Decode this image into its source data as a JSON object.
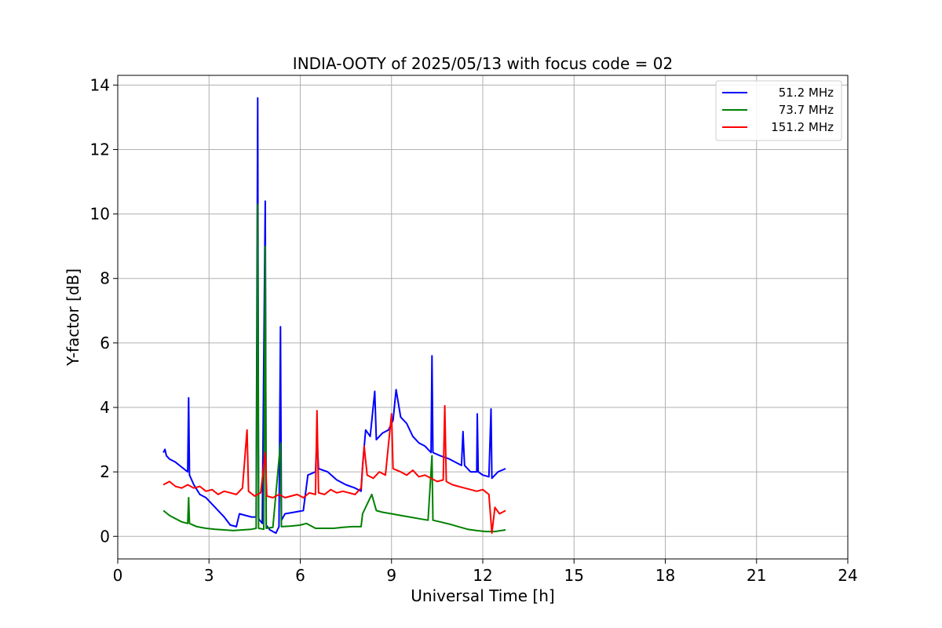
{
  "chart_data": {
    "type": "line",
    "title": "INDIA-OOTY of 2025/05/13 with focus code = 02",
    "xlabel": "Universal Time [h]",
    "ylabel": "Y-factor [dB]",
    "xlim": [
      0,
      24
    ],
    "ylim": [
      -0.7,
      14.3
    ],
    "xticks": [
      0,
      3,
      6,
      9,
      12,
      15,
      18,
      21,
      24
    ],
    "yticks": [
      0,
      2,
      4,
      6,
      8,
      10,
      12,
      14
    ],
    "grid": true,
    "legend_position": "top-right",
    "series": [
      {
        "name": "51.2 MHz",
        "color": "#0000ff",
        "points": [
          [
            1.5,
            2.6
          ],
          [
            1.55,
            2.7
          ],
          [
            1.6,
            2.5
          ],
          [
            1.7,
            2.4
          ],
          [
            1.9,
            2.3
          ],
          [
            2.1,
            2.15
          ],
          [
            2.3,
            2.0
          ],
          [
            2.33,
            4.3
          ],
          [
            2.36,
            1.9
          ],
          [
            2.5,
            1.6
          ],
          [
            2.7,
            1.3
          ],
          [
            2.9,
            1.2
          ],
          [
            3.1,
            1.0
          ],
          [
            3.3,
            0.8
          ],
          [
            3.5,
            0.6
          ],
          [
            3.7,
            0.35
          ],
          [
            3.9,
            0.3
          ],
          [
            4.0,
            0.7
          ],
          [
            4.2,
            0.65
          ],
          [
            4.4,
            0.6
          ],
          [
            4.55,
            0.6
          ],
          [
            4.6,
            13.6
          ],
          [
            4.63,
            0.55
          ],
          [
            4.75,
            0.4
          ],
          [
            4.85,
            10.4
          ],
          [
            4.88,
            0.35
          ],
          [
            5.0,
            0.2
          ],
          [
            5.2,
            0.1
          ],
          [
            5.3,
            0.3
          ],
          [
            5.35,
            6.5
          ],
          [
            5.38,
            0.5
          ],
          [
            5.5,
            0.7
          ],
          [
            5.8,
            0.75
          ],
          [
            6.1,
            0.8
          ],
          [
            6.25,
            1.9
          ],
          [
            6.5,
            2.0
          ],
          [
            6.55,
            3.1
          ],
          [
            6.6,
            2.1
          ],
          [
            6.9,
            2.0
          ],
          [
            7.2,
            1.75
          ],
          [
            7.5,
            1.6
          ],
          [
            7.8,
            1.5
          ],
          [
            8.0,
            1.4
          ],
          [
            8.05,
            2.2
          ],
          [
            8.15,
            3.3
          ],
          [
            8.3,
            3.1
          ],
          [
            8.45,
            4.5
          ],
          [
            8.5,
            3.0
          ],
          [
            8.7,
            3.2
          ],
          [
            8.9,
            3.3
          ],
          [
            9.05,
            3.6
          ],
          [
            9.15,
            4.55
          ],
          [
            9.3,
            3.7
          ],
          [
            9.5,
            3.5
          ],
          [
            9.7,
            3.1
          ],
          [
            9.9,
            2.9
          ],
          [
            10.1,
            2.8
          ],
          [
            10.3,
            2.6
          ],
          [
            10.33,
            5.6
          ],
          [
            10.36,
            2.6
          ],
          [
            10.6,
            2.5
          ],
          [
            10.9,
            2.4
          ],
          [
            11.1,
            2.3
          ],
          [
            11.3,
            2.2
          ],
          [
            11.35,
            3.25
          ],
          [
            11.4,
            2.2
          ],
          [
            11.6,
            2.0
          ],
          [
            11.8,
            2.0
          ],
          [
            11.82,
            3.8
          ],
          [
            11.85,
            2.0
          ],
          [
            12.0,
            1.9
          ],
          [
            12.2,
            1.85
          ],
          [
            12.27,
            3.95
          ],
          [
            12.3,
            1.8
          ],
          [
            12.5,
            2.0
          ],
          [
            12.75,
            2.1
          ]
        ]
      },
      {
        "name": "73.7 MHz",
        "color": "#008000",
        "points": [
          [
            1.5,
            0.8
          ],
          [
            1.7,
            0.65
          ],
          [
            1.9,
            0.55
          ],
          [
            2.1,
            0.45
          ],
          [
            2.3,
            0.4
          ],
          [
            2.33,
            1.2
          ],
          [
            2.36,
            0.4
          ],
          [
            2.6,
            0.3
          ],
          [
            2.9,
            0.25
          ],
          [
            3.2,
            0.22
          ],
          [
            3.5,
            0.2
          ],
          [
            3.8,
            0.18
          ],
          [
            4.1,
            0.2
          ],
          [
            4.4,
            0.22
          ],
          [
            4.55,
            0.25
          ],
          [
            4.6,
            10.3
          ],
          [
            4.63,
            0.25
          ],
          [
            4.8,
            0.22
          ],
          [
            4.85,
            9.0
          ],
          [
            4.88,
            0.25
          ],
          [
            5.1,
            0.28
          ],
          [
            5.35,
            2.9
          ],
          [
            5.38,
            0.3
          ],
          [
            5.7,
            0.32
          ],
          [
            6.0,
            0.35
          ],
          [
            6.2,
            0.4
          ],
          [
            6.5,
            0.25
          ],
          [
            6.8,
            0.25
          ],
          [
            7.1,
            0.25
          ],
          [
            7.4,
            0.28
          ],
          [
            7.7,
            0.3
          ],
          [
            8.0,
            0.3
          ],
          [
            8.05,
            0.7
          ],
          [
            8.2,
            1.0
          ],
          [
            8.35,
            1.3
          ],
          [
            8.5,
            0.8
          ],
          [
            8.7,
            0.75
          ],
          [
            9.0,
            0.7
          ],
          [
            9.3,
            0.65
          ],
          [
            9.6,
            0.6
          ],
          [
            9.9,
            0.55
          ],
          [
            10.2,
            0.5
          ],
          [
            10.33,
            2.5
          ],
          [
            10.36,
            0.5
          ],
          [
            10.6,
            0.45
          ],
          [
            10.9,
            0.38
          ],
          [
            11.2,
            0.3
          ],
          [
            11.5,
            0.22
          ],
          [
            11.8,
            0.18
          ],
          [
            12.1,
            0.15
          ],
          [
            12.4,
            0.15
          ],
          [
            12.75,
            0.2
          ]
        ]
      },
      {
        "name": "151.2 MHz",
        "color": "#ff0000",
        "points": [
          [
            1.5,
            1.6
          ],
          [
            1.7,
            1.7
          ],
          [
            1.9,
            1.55
          ],
          [
            2.1,
            1.5
          ],
          [
            2.3,
            1.6
          ],
          [
            2.5,
            1.5
          ],
          [
            2.7,
            1.55
          ],
          [
            2.9,
            1.4
          ],
          [
            3.1,
            1.45
          ],
          [
            3.3,
            1.3
          ],
          [
            3.5,
            1.4
          ],
          [
            3.7,
            1.35
          ],
          [
            3.9,
            1.3
          ],
          [
            4.1,
            1.5
          ],
          [
            4.25,
            3.3
          ],
          [
            4.3,
            1.4
          ],
          [
            4.5,
            1.25
          ],
          [
            4.7,
            1.35
          ],
          [
            4.85,
            2.6
          ],
          [
            4.9,
            1.25
          ],
          [
            5.1,
            1.2
          ],
          [
            5.3,
            1.3
          ],
          [
            5.5,
            1.2
          ],
          [
            5.7,
            1.25
          ],
          [
            5.9,
            1.3
          ],
          [
            6.1,
            1.2
          ],
          [
            6.3,
            1.35
          ],
          [
            6.5,
            1.3
          ],
          [
            6.55,
            3.9
          ],
          [
            6.6,
            1.35
          ],
          [
            6.8,
            1.3
          ],
          [
            7.0,
            1.45
          ],
          [
            7.2,
            1.35
          ],
          [
            7.4,
            1.4
          ],
          [
            7.6,
            1.35
          ],
          [
            7.8,
            1.3
          ],
          [
            8.0,
            1.5
          ],
          [
            8.1,
            2.8
          ],
          [
            8.2,
            1.9
          ],
          [
            8.4,
            1.8
          ],
          [
            8.6,
            2.0
          ],
          [
            8.8,
            1.9
          ],
          [
            9.0,
            3.8
          ],
          [
            9.05,
            2.1
          ],
          [
            9.3,
            2.0
          ],
          [
            9.5,
            1.9
          ],
          [
            9.7,
            2.05
          ],
          [
            9.9,
            1.85
          ],
          [
            10.1,
            1.9
          ],
          [
            10.3,
            1.8
          ],
          [
            10.5,
            1.7
          ],
          [
            10.7,
            1.75
          ],
          [
            10.75,
            4.05
          ],
          [
            10.8,
            1.7
          ],
          [
            11.0,
            1.6
          ],
          [
            11.2,
            1.55
          ],
          [
            11.4,
            1.5
          ],
          [
            11.6,
            1.45
          ],
          [
            11.8,
            1.4
          ],
          [
            12.0,
            1.45
          ],
          [
            12.2,
            1.3
          ],
          [
            12.3,
            0.1
          ],
          [
            12.4,
            0.9
          ],
          [
            12.55,
            0.7
          ],
          [
            12.75,
            0.8
          ]
        ]
      }
    ]
  }
}
